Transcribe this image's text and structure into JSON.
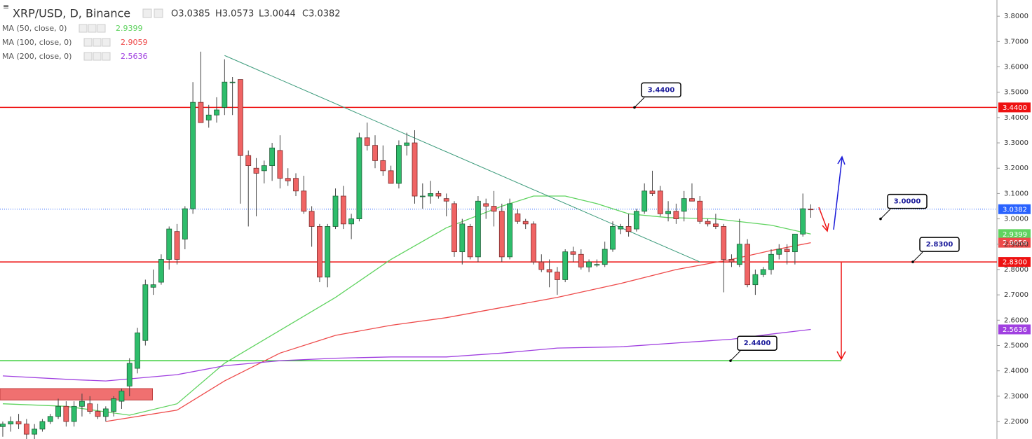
{
  "chart_data": {
    "type": "candlestick",
    "title": "XRP/USD, D, Binance",
    "ohlc_header": [
      "O3.0385",
      "H3.0573",
      "L3.0044",
      "C3.0382"
    ],
    "up_color": "#2ebd6b",
    "down_color": "#f06464",
    "open": [
      2.18,
      2.19,
      2.2,
      2.19,
      2.15,
      2.17,
      2.2,
      2.22,
      2.26,
      2.2,
      2.26,
      2.27,
      2.24,
      2.22,
      2.24,
      2.28,
      2.34,
      2.41,
      2.52,
      2.73,
      2.75,
      2.84,
      2.95,
      2.92,
      3.04,
      3.46,
      3.39,
      3.41,
      3.44,
      3.54,
      3.55,
      3.25,
      3.2,
      3.19,
      3.21,
      3.27,
      3.16,
      3.16,
      3.11,
      3.03,
      2.97,
      2.77,
      2.97,
      3.09,
      2.98,
      3.0,
      3.32,
      3.29,
      3.23,
      3.19,
      3.14,
      3.29,
      3.3,
      3.09,
      3.09,
      3.1,
      3.08,
      3.06,
      2.87,
      2.97,
      2.85,
      3.06,
      3.05,
      3.03,
      2.85,
      3.02,
      2.99,
      2.98,
      2.83,
      2.8,
      2.79,
      2.76,
      2.87,
      2.86,
      2.81,
      2.82,
      2.82,
      2.88,
      2.96,
      2.97,
      2.96,
      3.03,
      3.11,
      3.11,
      3.02,
      3.03,
      3.03,
      3.08,
      3.07,
      2.99,
      2.98,
      2.97,
      2.84,
      2.82,
      2.9,
      2.74,
      2.78,
      2.8,
      2.86,
      2.88,
      2.87,
      2.94,
      3.0385
    ],
    "high": [
      2.2,
      2.22,
      2.23,
      2.21,
      2.19,
      2.21,
      2.23,
      2.29,
      2.28,
      2.28,
      2.31,
      2.3,
      2.27,
      2.26,
      2.3,
      2.33,
      2.45,
      2.57,
      2.76,
      2.8,
      2.86,
      2.97,
      2.98,
      3.05,
      3.54,
      3.66,
      3.45,
      3.48,
      3.63,
      3.56,
      3.55,
      3.27,
      3.24,
      3.23,
      3.3,
      3.33,
      3.2,
      3.18,
      3.17,
      3.05,
      2.98,
      2.98,
      3.12,
      3.13,
      3.02,
      3.34,
      3.38,
      3.33,
      3.29,
      3.21,
      3.31,
      3.34,
      3.35,
      3.14,
      3.15,
      3.11,
      3.1,
      3.07,
      3.0,
      2.98,
      3.09,
      3.08,
      3.11,
      3.06,
      3.08,
      3.04,
      3.0,
      2.99,
      2.86,
      2.84,
      2.81,
      2.88,
      2.89,
      2.88,
      2.84,
      2.84,
      2.91,
      2.99,
      2.98,
      3.02,
      3.04,
      3.14,
      3.19,
      3.13,
      3.07,
      3.06,
      3.11,
      3.14,
      3.09,
      3.0,
      3.02,
      2.98,
      2.86,
      3.0,
      2.92,
      2.8,
      2.81,
      2.88,
      2.9,
      2.9,
      2.94,
      3.1,
      3.0573
    ],
    "low": [
      2.14,
      2.16,
      2.17,
      2.13,
      2.13,
      2.16,
      2.19,
      2.21,
      2.18,
      2.18,
      2.22,
      2.23,
      2.21,
      2.2,
      2.22,
      2.25,
      2.3,
      2.39,
      2.5,
      2.7,
      2.74,
      2.8,
      2.82,
      2.88,
      3.02,
      3.39,
      3.36,
      3.38,
      3.41,
      3.41,
      3.06,
      2.97,
      3.01,
      3.14,
      3.15,
      3.12,
      3.13,
      3.09,
      3.02,
      2.89,
      2.75,
      2.73,
      2.96,
      2.96,
      2.92,
      2.99,
      3.27,
      3.2,
      3.17,
      3.14,
      3.12,
      3.25,
      3.06,
      3.04,
      3.06,
      3.08,
      3.01,
      2.85,
      2.82,
      2.84,
      2.83,
      3.0,
      2.97,
      2.83,
      2.84,
      2.98,
      2.96,
      2.82,
      2.79,
      2.73,
      2.7,
      2.75,
      2.83,
      2.8,
      2.79,
      2.81,
      2.81,
      2.87,
      2.94,
      2.93,
      2.95,
      3.02,
      3.09,
      3.01,
      2.99,
      2.98,
      2.99,
      3.07,
      2.98,
      2.97,
      2.96,
      2.71,
      2.81,
      2.81,
      2.73,
      2.7,
      2.77,
      2.78,
      2.84,
      2.82,
      2.82,
      2.93,
      3.0044
    ],
    "close": [
      2.19,
      2.2,
      2.19,
      2.15,
      2.17,
      2.2,
      2.22,
      2.26,
      2.2,
      2.26,
      2.28,
      2.24,
      2.22,
      2.25,
      2.29,
      2.32,
      2.43,
      2.55,
      2.74,
      2.74,
      2.84,
      2.96,
      2.84,
      3.04,
      3.46,
      3.38,
      3.41,
      3.43,
      3.54,
      3.54,
      3.25,
      3.21,
      3.18,
      3.21,
      3.28,
      3.16,
      3.15,
      3.11,
      3.03,
      2.97,
      2.77,
      2.97,
      3.09,
      2.98,
      3.0,
      3.32,
      3.29,
      3.23,
      3.19,
      3.14,
      3.29,
      3.3,
      3.09,
      3.09,
      3.1,
      3.09,
      3.07,
      2.87,
      2.98,
      2.85,
      3.07,
      3.05,
      3.03,
      2.85,
      3.06,
      2.99,
      2.98,
      2.83,
      2.8,
      2.79,
      2.76,
      2.87,
      2.86,
      2.81,
      2.83,
      2.82,
      2.88,
      2.97,
      2.97,
      2.95,
      3.03,
      3.11,
      3.1,
      3.02,
      3.03,
      3.0,
      3.08,
      3.07,
      2.99,
      2.98,
      2.97,
      2.84,
      2.83,
      2.9,
      2.74,
      2.78,
      2.8,
      2.86,
      2.88,
      2.87,
      2.94,
      3.04,
      3.0382
    ],
    "xlim": [
      -0.35,
      125.5
    ],
    "ylim": [
      2.131,
      3.864
    ],
    "yticks": [
      {
        "value": 2.2,
        "label": "2.2000"
      },
      {
        "value": 2.3,
        "label": "2.3000"
      },
      {
        "value": 2.4,
        "label": "2.4000"
      },
      {
        "value": 2.5,
        "label": "2.5000"
      },
      {
        "value": 2.6,
        "label": "2.6000"
      },
      {
        "value": 2.7,
        "label": "2.7000"
      },
      {
        "value": 2.8,
        "label": "2.8000"
      },
      {
        "value": 2.9,
        "label": "2.9000"
      },
      {
        "value": 3.0,
        "label": "3.0000"
      },
      {
        "value": 3.1,
        "label": "3.1000"
      },
      {
        "value": 3.2,
        "label": "3.2000"
      },
      {
        "value": 3.3,
        "label": "3.3000"
      },
      {
        "value": 3.4,
        "label": "3.4000"
      },
      {
        "value": 3.5,
        "label": "3.5000"
      },
      {
        "value": 3.6,
        "label": "3.6000"
      },
      {
        "value": 3.7,
        "label": "3.7000"
      },
      {
        "value": 3.8,
        "label": "3.8000"
      }
    ],
    "moving_averages": [
      {
        "name": "MA (50, close, 0)",
        "color": "#5fd35f",
        "value_label": "2.9399",
        "x": [
          0,
          8,
          16,
          22,
          28,
          35,
          42,
          49,
          56,
          63,
          67,
          71,
          75,
          79,
          84,
          90,
          97,
          102
        ],
        "values": [
          2.27,
          2.26,
          2.225,
          2.27,
          2.43,
          2.56,
          2.69,
          2.84,
          2.965,
          3.05,
          3.09,
          3.09,
          3.06,
          3.02,
          3.005,
          3.0,
          2.975,
          2.9399
        ]
      },
      {
        "name": "MA (100, close, 0)",
        "color": "#ee4a4a",
        "value_label": "2.9059",
        "x": [
          13,
          22,
          28,
          35,
          42,
          49,
          56,
          63,
          70,
          78,
          85,
          92,
          97,
          102
        ],
        "values": [
          2.2,
          2.245,
          2.36,
          2.47,
          2.54,
          2.58,
          2.61,
          2.65,
          2.69,
          2.745,
          2.8,
          2.84,
          2.875,
          2.9059
        ]
      },
      {
        "name": "MA (200, close, 0)",
        "color": "#a040e0",
        "value_label": "2.5636",
        "x": [
          0,
          9,
          13,
          22,
          28,
          35,
          42,
          49,
          56,
          63,
          70,
          78,
          85,
          92,
          97,
          102
        ],
        "values": [
          2.38,
          2.365,
          2.36,
          2.385,
          2.42,
          2.44,
          2.45,
          2.455,
          2.455,
          2.47,
          2.49,
          2.495,
          2.51,
          2.525,
          2.545,
          2.5636
        ]
      }
    ],
    "levels": [
      {
        "value": 3.44,
        "label": "3.4400",
        "color": "#ee1111",
        "badge": true
      },
      {
        "value": 2.83,
        "label": "2.8300",
        "color": "#ee1111",
        "badge": true
      },
      {
        "value": 2.44,
        "label": "2.4400",
        "color": "#33cc33",
        "badge": false
      }
    ],
    "callouts": [
      {
        "value": 3.0,
        "label": "3.0000"
      }
    ],
    "last_price": {
      "value": 3.0382,
      "label": "3.0382",
      "color": "#2962ff"
    },
    "trendline": {
      "x": [
        28,
        88
      ],
      "values": [
        3.645,
        2.83
      ],
      "color": "#3a9a7a"
    },
    "zone": {
      "x": [
        -0.35,
        18.9
      ],
      "values": [
        2.33,
        2.285
      ],
      "color": "#f07070"
    }
  }
}
